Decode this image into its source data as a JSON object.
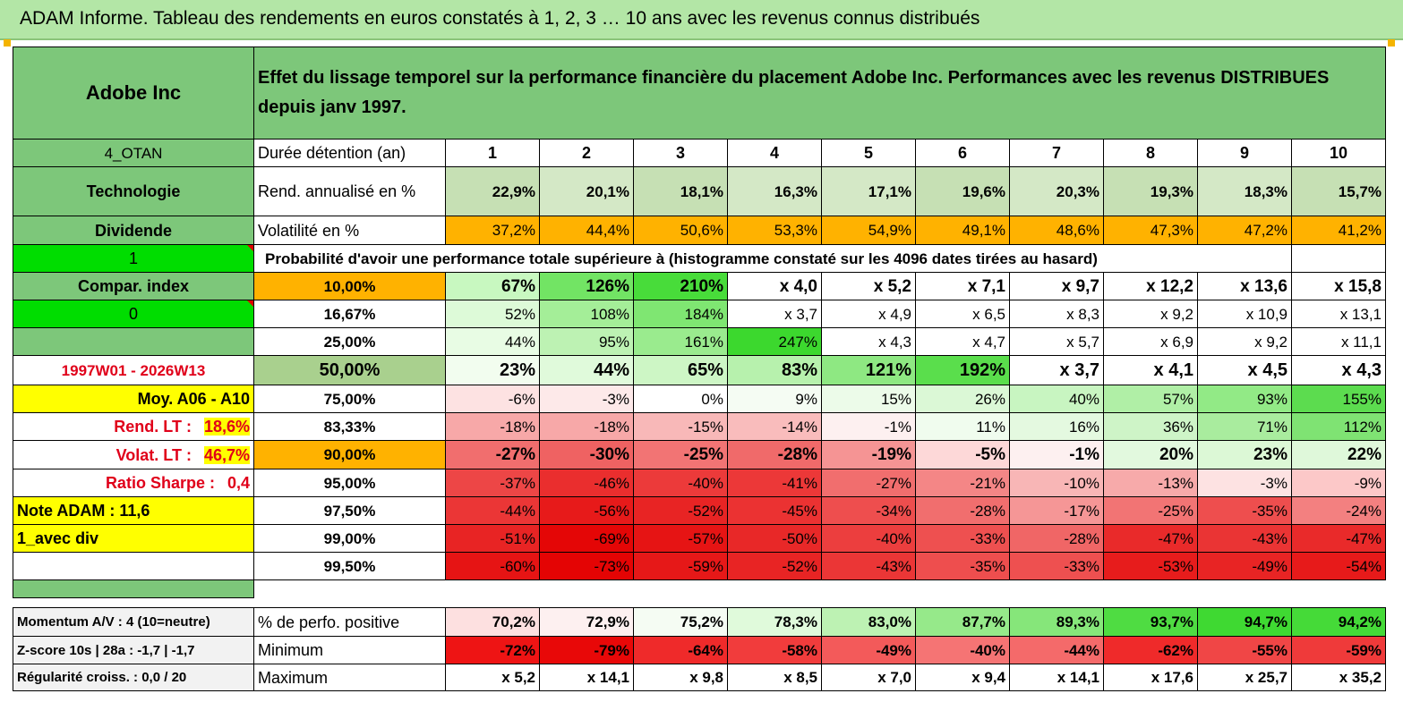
{
  "title": "ADAM Informe. Tableau des rendements en euros constatés à 1, 2, 3 … 10 ans avec les revenus connus distribués",
  "header": {
    "company": "Adobe Inc",
    "description": "Effet du lissage temporel sur la performance financière du placement Adobe Inc. Performances avec les revenus DISTRIBUES depuis janv 1997."
  },
  "sidebar": {
    "code": "4_OTAN",
    "sector": "Technologie",
    "type": "Dividende",
    "one": "1",
    "compar_index": "Compar. index",
    "zero": "0",
    "period": "1997W01 - 2026W13",
    "moy": "Moy. A06 - A10",
    "rend_lt_label": "Rend. LT :",
    "rend_lt_value": "18,6%",
    "volat_lt_label": "Volat. LT :",
    "volat_lt_value": "46,7%",
    "sharpe_label": "Ratio Sharpe :",
    "sharpe_value": "0,4",
    "note": "Note ADAM : 11,6",
    "avec_div": "1_avec div"
  },
  "table": {
    "duration_label": "Durée détention (an)",
    "years": [
      "1",
      "2",
      "3",
      "4",
      "5",
      "6",
      "7",
      "8",
      "9",
      "10"
    ],
    "rend_label": "Rend. annualisé en %",
    "rend": [
      "22,9%",
      "20,1%",
      "18,1%",
      "16,3%",
      "17,1%",
      "19,6%",
      "20,3%",
      "19,3%",
      "18,3%",
      "15,7%"
    ],
    "vol_label": "Volatilité en %",
    "vol": [
      "37,2%",
      "44,4%",
      "50,6%",
      "53,3%",
      "54,9%",
      "49,1%",
      "48,6%",
      "47,3%",
      "47,2%",
      "41,2%"
    ],
    "proba_label": "Probabilité d'avoir une performance totale supérieure à (histogramme constaté sur les 4096 dates tirées au hasard)",
    "prob_rows": [
      {
        "p": "10,00%",
        "v": [
          "67%",
          "126%",
          "210%",
          "x 4,0",
          "x 5,2",
          "x 7,1",
          "x 9,7",
          "x 12,2",
          "x 13,6",
          "x 15,8"
        ]
      },
      {
        "p": "16,67%",
        "v": [
          "52%",
          "108%",
          "184%",
          "x 3,7",
          "x 4,9",
          "x 6,5",
          "x 8,3",
          "x 9,2",
          "x 10,9",
          "x 13,1"
        ]
      },
      {
        "p": "25,00%",
        "v": [
          "44%",
          "95%",
          "161%",
          "247%",
          "x 4,3",
          "x 4,7",
          "x 5,7",
          "x 6,9",
          "x 9,2",
          "x 11,1"
        ]
      },
      {
        "p": "50,00%",
        "v": [
          "23%",
          "44%",
          "65%",
          "83%",
          "121%",
          "192%",
          "x 3,7",
          "x 4,1",
          "x 4,5",
          "x 4,3"
        ]
      },
      {
        "p": "75,00%",
        "v": [
          "-6%",
          "-3%",
          "0%",
          "9%",
          "15%",
          "26%",
          "40%",
          "57%",
          "93%",
          "155%"
        ]
      },
      {
        "p": "83,33%",
        "v": [
          "-18%",
          "-18%",
          "-15%",
          "-14%",
          "-1%",
          "11%",
          "16%",
          "36%",
          "71%",
          "112%"
        ]
      },
      {
        "p": "90,00%",
        "v": [
          "-27%",
          "-30%",
          "-25%",
          "-28%",
          "-19%",
          "-5%",
          "-1%",
          "20%",
          "23%",
          "22%"
        ]
      },
      {
        "p": "95,00%",
        "v": [
          "-37%",
          "-46%",
          "-40%",
          "-41%",
          "-27%",
          "-21%",
          "-10%",
          "-13%",
          "-3%",
          "-9%"
        ]
      },
      {
        "p": "97,50%",
        "v": [
          "-44%",
          "-56%",
          "-52%",
          "-45%",
          "-34%",
          "-28%",
          "-17%",
          "-25%",
          "-35%",
          "-24%"
        ]
      },
      {
        "p": "99,00%",
        "v": [
          "-51%",
          "-69%",
          "-57%",
          "-50%",
          "-40%",
          "-33%",
          "-28%",
          "-47%",
          "-43%",
          "-47%"
        ]
      },
      {
        "p": "99,50%",
        "v": [
          "-60%",
          "-73%",
          "-59%",
          "-52%",
          "-43%",
          "-35%",
          "-33%",
          "-53%",
          "-49%",
          "-54%"
        ]
      }
    ],
    "bottom_rows": [
      {
        "side": "Momentum A/V : 4 (10=neutre)",
        "label": "% de perfo. positive",
        "v": [
          "70,2%",
          "72,9%",
          "75,2%",
          "78,3%",
          "83,0%",
          "87,7%",
          "89,3%",
          "93,7%",
          "94,7%",
          "94,2%"
        ]
      },
      {
        "side": "Z-score 10s | 28a : -1,7 | -1,7",
        "label": "Minimum",
        "v": [
          "-72%",
          "-79%",
          "-64%",
          "-58%",
          "-49%",
          "-40%",
          "-44%",
          "-62%",
          "-55%",
          "-59%"
        ]
      },
      {
        "side": "Régularité croiss. : 0,0 / 20",
        "label": "Maximum",
        "v": [
          "x 5,2",
          "x 14,1",
          "x 9,8",
          "x 8,5",
          "x 7,0",
          "x 9,4",
          "x 14,1",
          "x 17,6",
          "x 25,7",
          "x 35,2"
        ]
      }
    ]
  },
  "colors": {
    "rend": [
      "#c6e0b4",
      "#d4e8c6",
      "#c6e0b4",
      "#d4e8c6",
      "#d4e8c6",
      "#c6e0b4",
      "#d4e8c6",
      "#c6e0b4",
      "#d4e8c6",
      "#c6e0b4"
    ],
    "prob_rows": [
      [
        "#c8f8c0",
        "#72e464",
        "#48dc3a",
        "#ffffff",
        "#ffffff",
        "#ffffff",
        "#ffffff",
        "#ffffff",
        "#ffffff",
        "#ffffff"
      ],
      [
        "#ddfad8",
        "#a4ee98",
        "#7fe672",
        "#ffffff",
        "#ffffff",
        "#ffffff",
        "#ffffff",
        "#ffffff",
        "#ffffff",
        "#ffffff"
      ],
      [
        "#e8fce4",
        "#bdf2b3",
        "#9aeb8e",
        "#3cd82e",
        "#ffffff",
        "#ffffff",
        "#ffffff",
        "#ffffff",
        "#ffffff",
        "#ffffff"
      ],
      [
        "#f2fdef",
        "#e0fadb",
        "#cdf6c5",
        "#b7f1ad",
        "#8ee882",
        "#5ade4c",
        "#ffffff",
        "#ffffff",
        "#ffffff",
        "#ffffff"
      ],
      [
        "#fde2e2",
        "#fde9e9",
        "#ffffff",
        "#f5fcf3",
        "#ecfbe9",
        "#dbf8d6",
        "#c8f5c1",
        "#b0efa6",
        "#92ea86",
        "#5cdc4f"
      ],
      [
        "#f7a8a8",
        "#f7a8a8",
        "#f8b8b8",
        "#f9bcbc",
        "#fdf0f0",
        "#f0fcee",
        "#e4f9e0",
        "#cef4c7",
        "#a9ec9e",
        "#7fe373"
      ],
      [
        "#f16e6e",
        "#ef6262",
        "#f27474",
        "#f06a6a",
        "#f59494",
        "#fdd8d8",
        "#fdf0f0",
        "#e2f9de",
        "#dcf8d6",
        "#dff8da"
      ],
      [
        "#ed4646",
        "#ea2e2e",
        "#ec3a3a",
        "#ec3838",
        "#f16e6e",
        "#f48686",
        "#f8b6b6",
        "#f7aaaa",
        "#fde2e2",
        "#fcc8c8"
      ],
      [
        "#eb3636",
        "#e71a1a",
        "#e82424",
        "#eb3232",
        "#ee4e4e",
        "#f16e6e",
        "#f59696",
        "#f27474",
        "#ee4e4e",
        "#f38080"
      ],
      [
        "#e82424",
        "#e40606",
        "#e61414",
        "#e82828",
        "#ec3e3e",
        "#ee5050",
        "#f06666",
        "#e92a2a",
        "#ea3434",
        "#e92a2a"
      ],
      [
        "#e61414",
        "#e40404",
        "#e61818",
        "#e82424",
        "#eb3636",
        "#ee4e4e",
        "#ee5050",
        "#e71c1c",
        "#e82424",
        "#e71a1a"
      ]
    ],
    "bottom_rows": [
      [
        "#fde0e0",
        "#fdf0f0",
        "#f5fcf3",
        "#e0fadb",
        "#bdf2b3",
        "#96e98a",
        "#86e67a",
        "#4fdc42",
        "#3fd932",
        "#45da38"
      ],
      [
        "#ee1414",
        "#e80808",
        "#ef2a2a",
        "#f13c3c",
        "#f35a5a",
        "#f57474",
        "#f46a6a",
        "#ef2a2a",
        "#f04646",
        "#ef3a3a"
      ],
      [
        "#ffffff",
        "#ffffff",
        "#ffffff",
        "#ffffff",
        "#ffffff",
        "#ffffff",
        "#ffffff",
        "#ffffff",
        "#ffffff",
        "#ffffff"
      ]
    ]
  }
}
